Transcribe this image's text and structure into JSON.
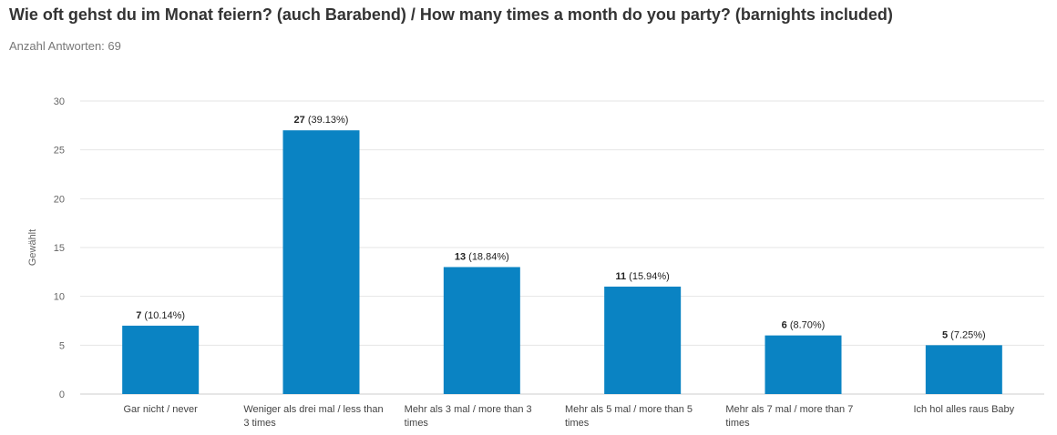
{
  "header": {
    "title": "Wie oft gehst du im Monat feiern? (auch Barabend) / How many times a month do you party? (barnights included)",
    "responses": "Anzahl Antworten: 69"
  },
  "colors": {
    "bar": "#0a83c3",
    "grid": "#e6e6e6",
    "axis_text": "#666666",
    "label_text": "#222222"
  },
  "chart_data": {
    "type": "bar",
    "categories": [
      [
        "Gar nicht / never"
      ],
      [
        "Weniger als drei mal / less than",
        "3 times"
      ],
      [
        "Mehr als 3 mal / more than 3",
        "times"
      ],
      [
        "Mehr als 5 mal / more than 5",
        "times"
      ],
      [
        "Mehr als 7 mal / more than 7",
        "times"
      ],
      [
        "Ich hol alles raus Baby"
      ]
    ],
    "values": [
      7,
      27,
      13,
      11,
      6,
      5
    ],
    "percent_labels": [
      "(10.14%)",
      "(39.13%)",
      "(18.84%)",
      "(15.94%)",
      "(8.70%)",
      "(7.25%)"
    ],
    "ylabel": "Gewählt",
    "ylim": [
      0,
      30
    ],
    "yticks": [
      0,
      5,
      10,
      15,
      20,
      25,
      30
    ],
    "grid": true
  }
}
